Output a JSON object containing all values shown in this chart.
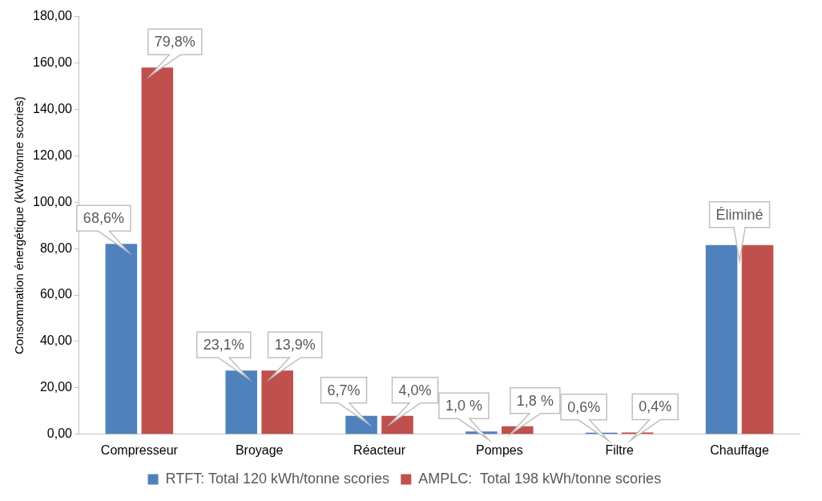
{
  "chart_data": {
    "type": "bar",
    "ylabel": "Consommation énergétique (kWh/tonne scories)",
    "categories": [
      "Compresseur",
      "Broyage",
      "Réacteur",
      "Pompes",
      "Filtre",
      "Chauffage"
    ],
    "series": [
      {
        "name": "RTFT: Total 120 kWh/tonne scories",
        "color": "#4f81bd",
        "values": [
          82,
          27.5,
          8,
          1.2,
          0.7,
          81.5
        ]
      },
      {
        "name": "AMPLC:  Total 198 kWh/tonne scories",
        "color": "#c0504d",
        "values": [
          158,
          27.5,
          8,
          3.5,
          0.8,
          81.5
        ]
      }
    ],
    "annotations": [
      {
        "text": "68,6%",
        "x": "Compresseur",
        "y": 82
      },
      {
        "text": "79,8%",
        "x": "Compresseur",
        "y": 158
      },
      {
        "text": "23,1%",
        "x": "Broyage",
        "y": 27.5
      },
      {
        "text": "13,9%",
        "x": "Broyage",
        "y": 27.5
      },
      {
        "text": "6,7%",
        "x": "Réacteur",
        "y": 8
      },
      {
        "text": "4,0%",
        "x": "Réacteur",
        "y": 8
      },
      {
        "text": "1,0 %",
        "x": "Pompes",
        "y": 1.2
      },
      {
        "text": "1,8 %",
        "x": "Pompes",
        "y": 3.5
      },
      {
        "text": "0,6%",
        "x": "Filtre",
        "y": 0.7
      },
      {
        "text": "0,4%",
        "x": "Filtre",
        "y": 0.8
      },
      {
        "text": "Éliminé",
        "x": "Chauffage",
        "y": 81.5
      }
    ],
    "ylim": [
      0,
      180
    ],
    "yticks": [
      {
        "value": 0,
        "label": "0,00"
      },
      {
        "value": 20,
        "label": "20,00"
      },
      {
        "value": 40,
        "label": "40,00"
      },
      {
        "value": 60,
        "label": "60,00"
      },
      {
        "value": 80,
        "label": "80,00"
      },
      {
        "value": 100,
        "label": "100,00"
      },
      {
        "value": 120,
        "label": "120,00"
      },
      {
        "value": 140,
        "label": "140,00"
      },
      {
        "value": 160,
        "label": "160,00"
      },
      {
        "value": 180,
        "label": "180,00"
      }
    ],
    "grid": false,
    "legend": "bottom"
  }
}
